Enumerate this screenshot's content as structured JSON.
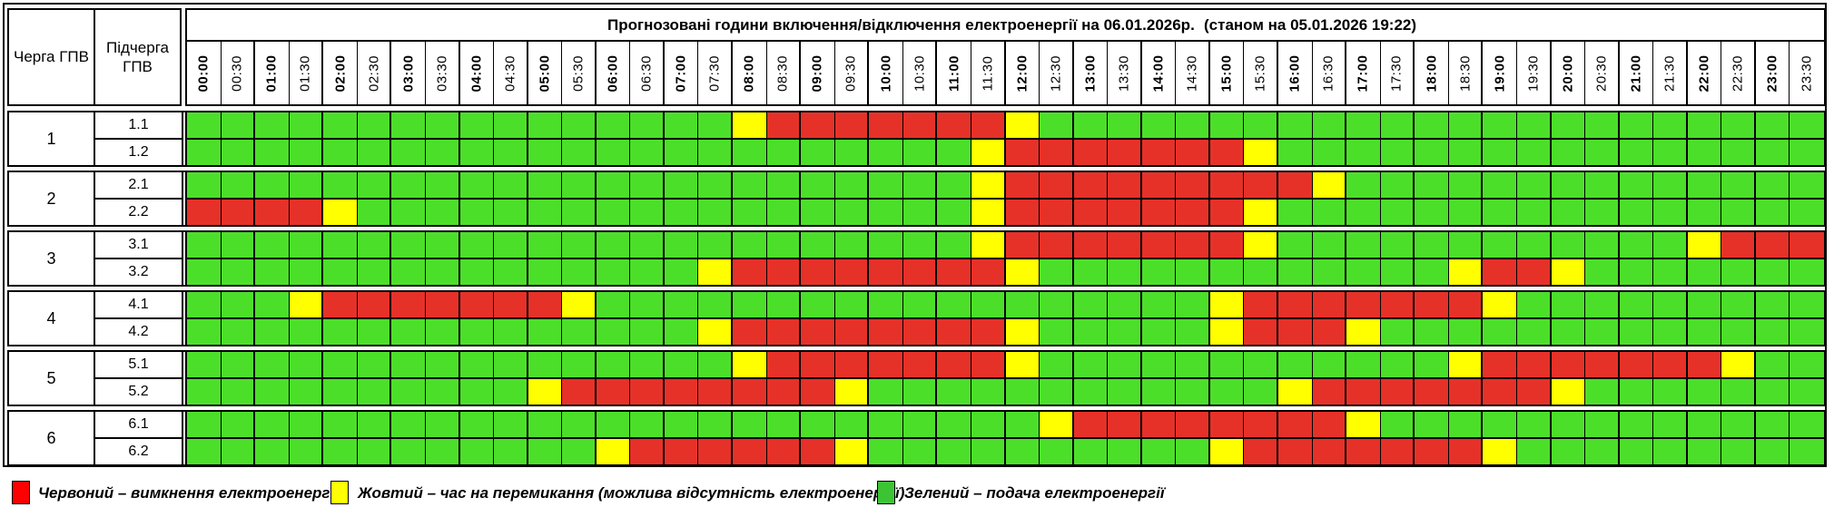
{
  "header": {
    "queue_col": "Черга ГПВ",
    "subqueue_col": "Підчерга ГПВ",
    "title": "Прогнозовані години включення/відключення електроенергії на 06.01.2026р.",
    "status_note": "(станом на 05.01.2026 19:22)"
  },
  "chart_data": {
    "type": "heatmap",
    "title": "Прогнозовані години включення/відключення електроенергії на 06.01.2026р.",
    "subtitle": "(станом на 05.01.2026 19:22)",
    "x_labels": [
      "00:00",
      "00:30",
      "01:00",
      "01:30",
      "02:00",
      "02:30",
      "03:00",
      "03:30",
      "04:00",
      "04:30",
      "05:00",
      "05:30",
      "06:00",
      "06:30",
      "07:00",
      "07:30",
      "08:00",
      "08:30",
      "09:00",
      "09:30",
      "10:00",
      "10:30",
      "11:00",
      "11:30",
      "12:00",
      "12:30",
      "13:00",
      "13:30",
      "14:00",
      "14:30",
      "15:00",
      "15:30",
      "16:00",
      "16:30",
      "17:00",
      "17:30",
      "18:00",
      "18:30",
      "19:00",
      "19:30",
      "20:00",
      "20:30",
      "21:00",
      "21:30",
      "22:00",
      "22:30",
      "23:00",
      "23:30"
    ],
    "state_colors": {
      "G": "#4cdf2a",
      "R": "#e63129",
      "Y": "#ffff00"
    },
    "state_meanings": {
      "G": "подача електроенергії",
      "R": "вимкнення електроенергії",
      "Y": "час на перемикання (можлива відсутність електроенергії)"
    },
    "groups": [
      {
        "queue": "1",
        "rows": [
          {
            "label": "1.1",
            "states": "GGGGGGGGGGGGGGGGYRRRRRRRYGGGGGGGGGGGGGGGGGGGGGGG"
          },
          {
            "label": "1.2",
            "states": "GGGGGGGGGGGGGGGGGGGGGGGYRRRRRRRYGGGGGGGGGGGGGGGG"
          }
        ]
      },
      {
        "queue": "2",
        "rows": [
          {
            "label": "2.1",
            "states": "GGGGGGGGGGGGGGGGGGGGGGGYRRRRRRRRRYGGGGGGGGGGGGGG"
          },
          {
            "label": "2.2",
            "states": "RRRRYGGGGGGGGGGGGGGGGGGYRRRRRRRYGGGGGGGGGGGGGGGG"
          }
        ]
      },
      {
        "queue": "3",
        "rows": [
          {
            "label": "3.1",
            "states": "GGGGGGGGGGGGGGGGGGGGGGGYRRRRRRRYGGGGGGGGGGGGYRRR"
          },
          {
            "label": "3.2",
            "states": "GGGGGGGGGGGGGGGYRRRRRRRRYGGGGGGGGGGGGYRRYGGGGGGG"
          }
        ]
      },
      {
        "queue": "4",
        "rows": [
          {
            "label": "4.1",
            "states": "GGGYRRRRRRRYGGGGGGGGGGGGGGGGGGYRRRRRRRYGGGGGGGGG"
          },
          {
            "label": "4.2",
            "states": "GGGGGGGGGGGGGGGYRRRRRRRRYGGGGGYRRRYGGGGGGGGGGGGG"
          }
        ]
      },
      {
        "queue": "5",
        "rows": [
          {
            "label": "5.1",
            "states": "GGGGGGGGGGGGGGGGYRRRRRRRYGGGGGGGGGGGGYRRRRRRRYGG"
          },
          {
            "label": "5.2",
            "states": "GGGGGGGGGGYRRRRRRRRYGGGGGGGGGGGGYRRRRRRRYGGGGGGG"
          }
        ]
      },
      {
        "queue": "6",
        "rows": [
          {
            "label": "6.1",
            "states": "GGGGGGGGGGGGGGGGGGGGGGGGGYRRRRRRRRYGGGGGGGGGGGGG"
          },
          {
            "label": "6.2",
            "states": "GGGGGGGGGGGGYRRRRRRYGGGGGGGGGGYRRRRRRRYGGGGGGGGG"
          }
        ]
      }
    ]
  },
  "legend": {
    "items": [
      {
        "color": "#ff0000",
        "label": "Червоний – вимкнення електроенергії"
      },
      {
        "color": "#ffff00",
        "label": "Жовтий – час на перемикання (можлива відсутність електроенергії)"
      },
      {
        "color": "#3dc435",
        "label": "Зелений – подача електроенергії"
      }
    ]
  }
}
